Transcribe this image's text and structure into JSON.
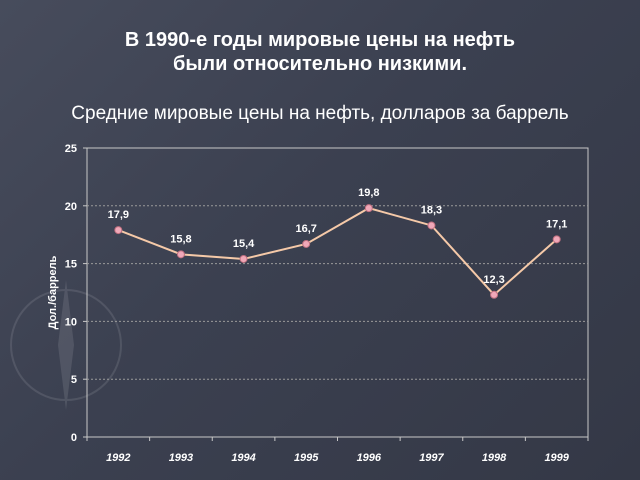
{
  "slide": {
    "title_line1": "В 1990-е годы мировые цены на нефть",
    "title_line2": "были относительно низкими.",
    "subtitle": "Средние мировые цены на нефть, долларов за баррель"
  },
  "colors": {
    "background": "#3d4252",
    "plot_border": "#c8c8c8",
    "grid": "#9a9a9a",
    "line": "#f5c9a8",
    "marker": "#f0a8b8",
    "text": "#ffffff"
  },
  "chart_data": {
    "type": "line",
    "categories": [
      "1992",
      "1993",
      "1994",
      "1995",
      "1996",
      "1997",
      "1998",
      "1999"
    ],
    "series": [
      {
        "values": [
          17.9,
          15.8,
          15.4,
          16.7,
          19.8,
          18.3,
          12.3,
          17.1
        ],
        "labels": [
          "17,9",
          "15,8",
          "15,4",
          "16,7",
          "19,8",
          "18,3",
          "12,3",
          "17,1"
        ]
      }
    ],
    "ylabel": "Дол./баррель",
    "xlabel": "",
    "ylim": [
      0,
      25
    ],
    "yticks": [
      "0",
      "5",
      "10",
      "15",
      "20",
      "25"
    ],
    "ytick_values": [
      0,
      5,
      10,
      15,
      20,
      25
    ],
    "grid": true,
    "legend": "none"
  }
}
